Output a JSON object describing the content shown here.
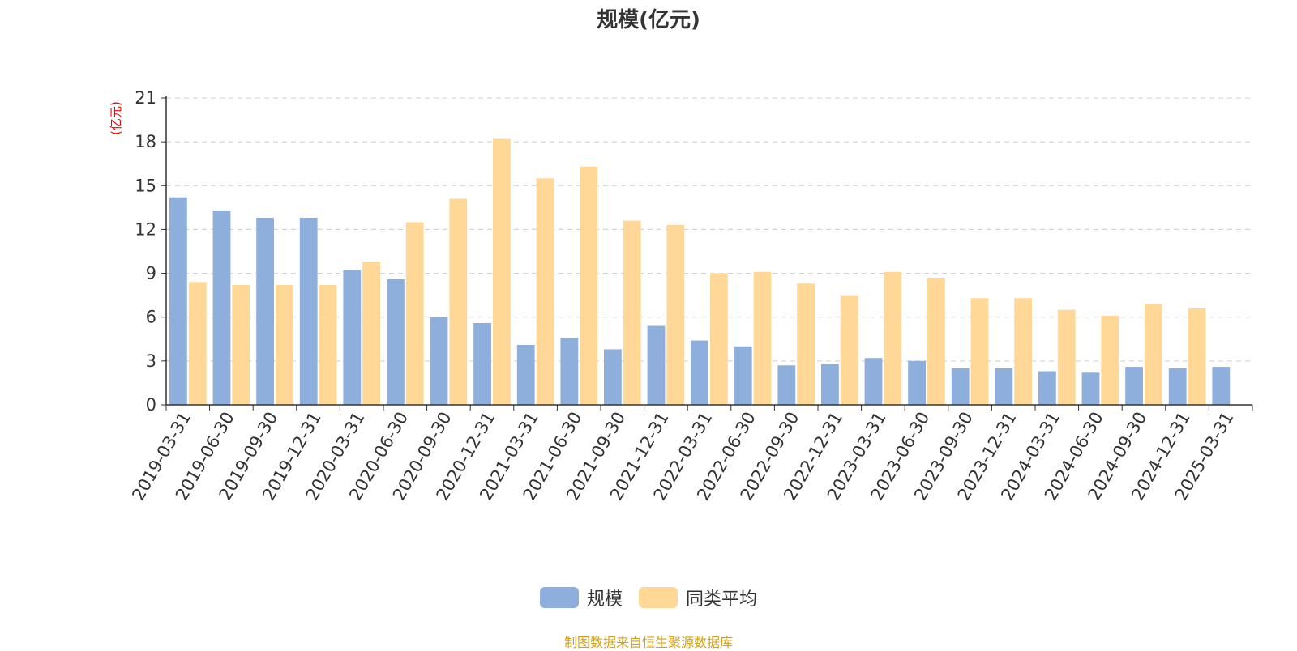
{
  "chart_data": {
    "type": "bar",
    "title": "规模(亿元)",
    "ylabel": "(亿元)",
    "xlabel": "",
    "ylim": [
      0,
      21
    ],
    "yticks": [
      "0",
      "3",
      "6",
      "9",
      "12",
      "15",
      "18",
      "21"
    ],
    "grid": true,
    "legend_position": "bottom",
    "categories": [
      "2019-03-31",
      "2019-06-30",
      "2019-09-30",
      "2019-12-31",
      "2020-03-31",
      "2020-06-30",
      "2020-09-30",
      "2020-12-31",
      "2021-03-31",
      "2021-06-30",
      "2021-09-30",
      "2021-12-31",
      "2022-03-31",
      "2022-06-30",
      "2022-09-30",
      "2022-12-31",
      "2023-03-31",
      "2023-06-30",
      "2023-09-30",
      "2023-12-31",
      "2024-03-31",
      "2024-06-30",
      "2024-09-30",
      "2024-12-31",
      "2025-03-31"
    ],
    "series": [
      {
        "name": "规模",
        "color": "#8eaedb",
        "values": [
          14.2,
          13.3,
          12.8,
          12.8,
          9.2,
          8.6,
          6.0,
          5.6,
          4.1,
          4.6,
          3.8,
          5.4,
          4.4,
          4.0,
          2.7,
          2.8,
          3.2,
          3.0,
          2.5,
          2.5,
          2.3,
          2.2,
          2.6,
          2.5,
          2.6
        ]
      },
      {
        "name": "同类平均",
        "color": "#ffd898",
        "values": [
          8.4,
          8.2,
          8.2,
          8.2,
          9.8,
          12.5,
          14.1,
          18.2,
          15.5,
          16.3,
          12.6,
          12.3,
          9.0,
          9.1,
          8.3,
          7.5,
          9.1,
          8.7,
          7.3,
          7.3,
          6.5,
          6.1,
          6.9,
          6.6,
          null
        ]
      }
    ],
    "source_note": "制图数据来自恒生聚源数据库",
    "colors": {
      "axis": "#333333",
      "grid": "#cccccc",
      "ylabel": "#ff0000",
      "source_note": "#d4a017"
    }
  }
}
